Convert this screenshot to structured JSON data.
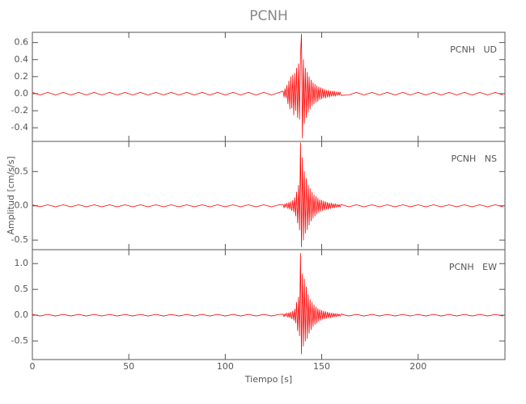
{
  "title": "PCNH",
  "x_label": "Tiempo [s]",
  "y_label": "Amplitud [cm/s/s]",
  "chart_data": [
    {
      "type": "line",
      "label": "PCNH   UD",
      "xlim": [
        0,
        245
      ],
      "xticks": [
        0,
        50,
        100,
        150,
        200
      ],
      "ylim": [
        -0.56,
        0.72
      ],
      "yticks": [
        -0.4,
        -0.2,
        {
          "value": 0,
          "label": "0.0"
        },
        0.2,
        0.4,
        0.6
      ],
      "x": [
        0,
        4,
        8,
        12,
        16,
        20,
        24,
        28,
        32,
        36,
        40,
        44,
        48,
        52,
        56,
        60,
        64,
        68,
        72,
        76,
        80,
        84,
        88,
        92,
        96,
        100,
        104,
        108,
        112,
        116,
        120,
        124,
        128,
        130,
        130.5,
        131,
        131.5,
        132,
        132.5,
        133,
        133.5,
        134,
        134.5,
        135,
        135.5,
        136,
        136.5,
        137,
        137.5,
        138,
        138.5,
        139,
        139.5,
        140,
        140.5,
        141,
        141.5,
        142,
        142.5,
        143,
        143.5,
        144,
        144.5,
        145,
        145.5,
        146,
        146.5,
        147,
        147.5,
        148,
        148.5,
        149,
        149.5,
        150,
        150.5,
        151,
        151.5,
        152,
        152.5,
        153,
        153.5,
        154,
        154.5,
        155,
        155.5,
        156,
        156.5,
        157,
        157.5,
        158,
        158.5,
        159,
        159.5,
        160,
        164,
        168,
        172,
        176,
        180,
        184,
        188,
        192,
        196,
        200,
        204,
        208,
        212,
        216,
        220,
        224,
        228,
        232,
        236,
        240,
        244
      ],
      "series": [
        {
          "name": "PCNH UD",
          "color": "#ff0000",
          "values": [
            0.015,
            -0.015,
            0.015,
            -0.015,
            0.015,
            -0.015,
            0.015,
            -0.015,
            0.015,
            -0.015,
            0.015,
            -0.015,
            0.015,
            -0.015,
            0.015,
            -0.015,
            0.015,
            -0.015,
            0.015,
            -0.015,
            0.015,
            -0.015,
            0.015,
            -0.015,
            0.015,
            -0.015,
            0.015,
            -0.015,
            0.015,
            -0.015,
            0.015,
            -0.015,
            0.015,
            0.03,
            -0.04,
            0.06,
            -0.05,
            0.1,
            -0.12,
            0.15,
            -0.18,
            0.2,
            -0.17,
            0.22,
            -0.25,
            0.24,
            -0.2,
            0.3,
            -0.28,
            0.35,
            -0.3,
            0.45,
            0.7,
            -0.52,
            0.4,
            -0.35,
            0.3,
            -0.28,
            0.25,
            -0.22,
            0.2,
            -0.18,
            0.16,
            -0.14,
            0.13,
            -0.12,
            0.11,
            -0.1,
            0.09,
            -0.09,
            0.08,
            -0.07,
            0.07,
            -0.06,
            0.06,
            -0.05,
            0.05,
            -0.05,
            0.04,
            -0.04,
            0.04,
            -0.04,
            0.03,
            -0.03,
            0.03,
            -0.03,
            0.03,
            -0.03,
            0.02,
            -0.02,
            0.02,
            -0.02,
            0.02,
            -0.02,
            -0.015,
            0.015,
            -0.015,
            0.015,
            -0.015,
            0.015,
            -0.015,
            0.015,
            -0.015,
            0.015,
            -0.015,
            0.015,
            -0.015,
            0.015,
            -0.015,
            0.015,
            -0.015,
            0.015,
            -0.015,
            0.015,
            -0.015
          ]
        }
      ]
    },
    {
      "type": "line",
      "label": "PCNH   NS",
      "xlim": [
        0,
        245
      ],
      "xticks": [
        0,
        50,
        100,
        150,
        200
      ],
      "ylim": [
        -0.64,
        0.94
      ],
      "yticks": [
        -0.5,
        {
          "value": 0,
          "label": "0.0"
        },
        0.5
      ],
      "x": [
        0,
        4,
        8,
        12,
        16,
        20,
        24,
        28,
        32,
        36,
        40,
        44,
        48,
        52,
        56,
        60,
        64,
        68,
        72,
        76,
        80,
        84,
        88,
        92,
        96,
        100,
        104,
        108,
        112,
        116,
        120,
        124,
        128,
        130,
        130.5,
        131,
        131.5,
        132,
        132.5,
        133,
        133.5,
        134,
        134.5,
        135,
        135.5,
        136,
        136.5,
        137,
        137.5,
        138,
        138.5,
        139,
        139.5,
        140,
        140.5,
        141,
        141.5,
        142,
        142.5,
        143,
        143.5,
        144,
        144.5,
        145,
        145.5,
        146,
        146.5,
        147,
        147.5,
        148,
        148.5,
        149,
        149.5,
        150,
        150.5,
        151,
        151.5,
        152,
        152.5,
        153,
        153.5,
        154,
        154.5,
        155,
        155.5,
        156,
        156.5,
        157,
        157.5,
        158,
        158.5,
        159,
        159.5,
        160,
        164,
        168,
        172,
        176,
        180,
        184,
        188,
        192,
        196,
        200,
        204,
        208,
        212,
        216,
        220,
        224,
        228,
        232,
        236,
        240,
        244
      ],
      "series": [
        {
          "name": "PCNH NS",
          "color": "#ff0000",
          "values": [
            0.015,
            -0.015,
            0.015,
            -0.015,
            0.015,
            -0.015,
            0.015,
            -0.015,
            0.015,
            -0.015,
            0.015,
            -0.015,
            0.015,
            -0.015,
            0.015,
            -0.015,
            0.015,
            -0.015,
            0.015,
            -0.015,
            0.015,
            -0.015,
            0.015,
            -0.015,
            0.015,
            -0.015,
            0.015,
            -0.015,
            0.015,
            -0.015,
            0.015,
            -0.015,
            0.015,
            0.02,
            -0.03,
            0.03,
            -0.02,
            0.04,
            -0.04,
            0.05,
            -0.05,
            0.06,
            -0.07,
            0.08,
            -0.09,
            0.12,
            -0.15,
            0.2,
            -0.25,
            0.3,
            -0.35,
            0.92,
            -0.6,
            0.7,
            -0.5,
            0.5,
            -0.4,
            0.4,
            -0.35,
            0.3,
            -0.28,
            0.25,
            -0.22,
            0.2,
            -0.18,
            0.16,
            -0.15,
            0.14,
            -0.12,
            0.11,
            -0.1,
            0.09,
            -0.08,
            0.08,
            -0.07,
            0.07,
            -0.06,
            0.06,
            -0.05,
            0.05,
            -0.05,
            0.04,
            -0.04,
            0.04,
            -0.03,
            0.03,
            -0.03,
            0.03,
            -0.02,
            0.02,
            -0.02,
            0.02,
            -0.02,
            0.02,
            -0.015,
            0.015,
            -0.015,
            0.015,
            -0.015,
            0.015,
            -0.015,
            0.015,
            -0.015,
            0.015,
            -0.015,
            0.015,
            -0.015,
            0.015,
            -0.015,
            0.015,
            -0.015,
            0.015,
            -0.015,
            0.015,
            -0.015
          ]
        }
      ]
    },
    {
      "type": "line",
      "label": "PCNH   EW",
      "xlim": [
        0,
        245
      ],
      "xticks": [
        0,
        50,
        100,
        150,
        200
      ],
      "ylim": [
        -0.86,
        1.27
      ],
      "yticks": [
        -0.5,
        {
          "value": 0,
          "label": "0.0"
        },
        0.5,
        {
          "value": 1,
          "label": "1.0"
        }
      ],
      "x": [
        0,
        4,
        8,
        12,
        16,
        20,
        24,
        28,
        32,
        36,
        40,
        44,
        48,
        52,
        56,
        60,
        64,
        68,
        72,
        76,
        80,
        84,
        88,
        92,
        96,
        100,
        104,
        108,
        112,
        116,
        120,
        124,
        128,
        130,
        130.5,
        131,
        131.5,
        132,
        132.5,
        133,
        133.5,
        134,
        134.5,
        135,
        135.5,
        136,
        136.5,
        137,
        137.5,
        138,
        138.5,
        139,
        139.5,
        140,
        140.5,
        141,
        141.5,
        142,
        142.5,
        143,
        143.5,
        144,
        144.5,
        145,
        145.5,
        146,
        146.5,
        147,
        147.5,
        148,
        148.5,
        149,
        149.5,
        150,
        150.5,
        151,
        151.5,
        152,
        152.5,
        153,
        153.5,
        154,
        154.5,
        155,
        155.5,
        156,
        156.5,
        157,
        157.5,
        158,
        158.5,
        159,
        159.5,
        160,
        164,
        168,
        172,
        176,
        180,
        184,
        188,
        192,
        196,
        200,
        204,
        208,
        212,
        216,
        220,
        224,
        228,
        232,
        236,
        240,
        244
      ],
      "series": [
        {
          "name": "PCNH EW",
          "color": "#ff0000",
          "values": [
            0.015,
            -0.015,
            0.015,
            -0.015,
            0.015,
            -0.015,
            0.015,
            -0.015,
            0.015,
            -0.015,
            0.015,
            -0.015,
            0.015,
            -0.015,
            0.015,
            -0.015,
            0.015,
            -0.015,
            0.015,
            -0.015,
            0.015,
            -0.015,
            0.015,
            -0.015,
            0.015,
            -0.015,
            0.015,
            -0.015,
            0.015,
            -0.015,
            0.015,
            -0.015,
            0.015,
            0.02,
            -0.03,
            0.03,
            -0.02,
            0.04,
            -0.04,
            0.05,
            -0.05,
            0.06,
            -0.07,
            0.08,
            -0.1,
            0.12,
            -0.15,
            0.25,
            -0.3,
            0.35,
            -0.4,
            1.2,
            -0.75,
            0.8,
            -0.6,
            0.7,
            -0.5,
            0.55,
            -0.45,
            0.4,
            -0.35,
            0.3,
            -0.28,
            0.25,
            -0.22,
            0.2,
            -0.18,
            0.16,
            -0.15,
            0.13,
            -0.12,
            0.11,
            -0.1,
            0.09,
            -0.08,
            0.08,
            -0.07,
            0.07,
            -0.06,
            0.06,
            -0.05,
            0.05,
            -0.05,
            0.04,
            -0.04,
            0.04,
            -0.03,
            0.03,
            -0.03,
            0.03,
            -0.02,
            0.02,
            -0.02,
            0.02,
            -0.015,
            0.015,
            -0.015,
            0.015,
            -0.015,
            0.015,
            -0.015,
            0.015,
            -0.015,
            0.015,
            -0.015,
            0.015,
            -0.015,
            0.015,
            -0.015,
            0.015,
            -0.015,
            0.015,
            -0.015,
            0.015,
            -0.015
          ]
        }
      ]
    }
  ]
}
